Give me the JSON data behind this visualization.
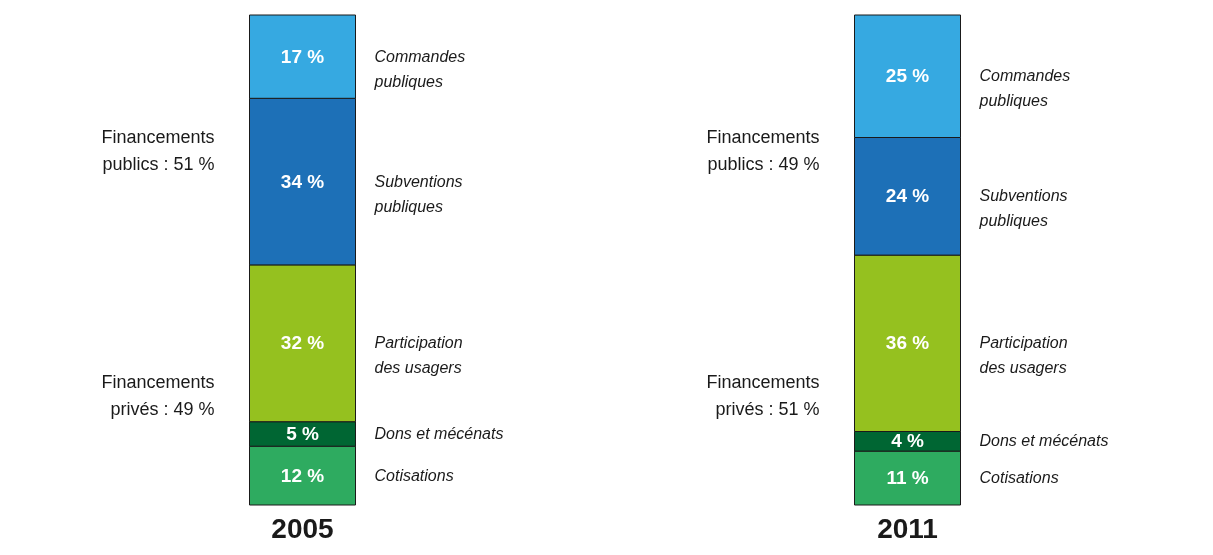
{
  "chart_data": {
    "type": "bar",
    "stacked": true,
    "categories": [
      "2005",
      "2011"
    ],
    "series": [
      {
        "name": "Cotisations",
        "color": "#2eab60",
        "values": [
          12,
          11
        ],
        "value_labels": [
          "12 %",
          "11 %"
        ]
      },
      {
        "name": "Dons et mécénats",
        "color": "#006633",
        "values": [
          5,
          4
        ],
        "value_labels": [
          "5 %",
          "4 %"
        ]
      },
      {
        "name": "Participation des usagers",
        "color": "#95c11f",
        "values": [
          32,
          36
        ],
        "value_labels": [
          "32 %",
          "36 %"
        ]
      },
      {
        "name": "Subventions publiques",
        "color": "#1d70b7",
        "values": [
          34,
          24
        ],
        "value_labels": [
          "34 %",
          "24 %"
        ]
      },
      {
        "name": "Commandes publiques",
        "color": "#36a9e1",
        "values": [
          17,
          25
        ],
        "value_labels": [
          "17 %",
          "25 %"
        ]
      }
    ],
    "annotations": [
      "Financements publics : 51 %",
      "Financements privés : 49 %",
      "Financements publics : 49 %",
      "Financements privés : 51 %"
    ]
  }
}
